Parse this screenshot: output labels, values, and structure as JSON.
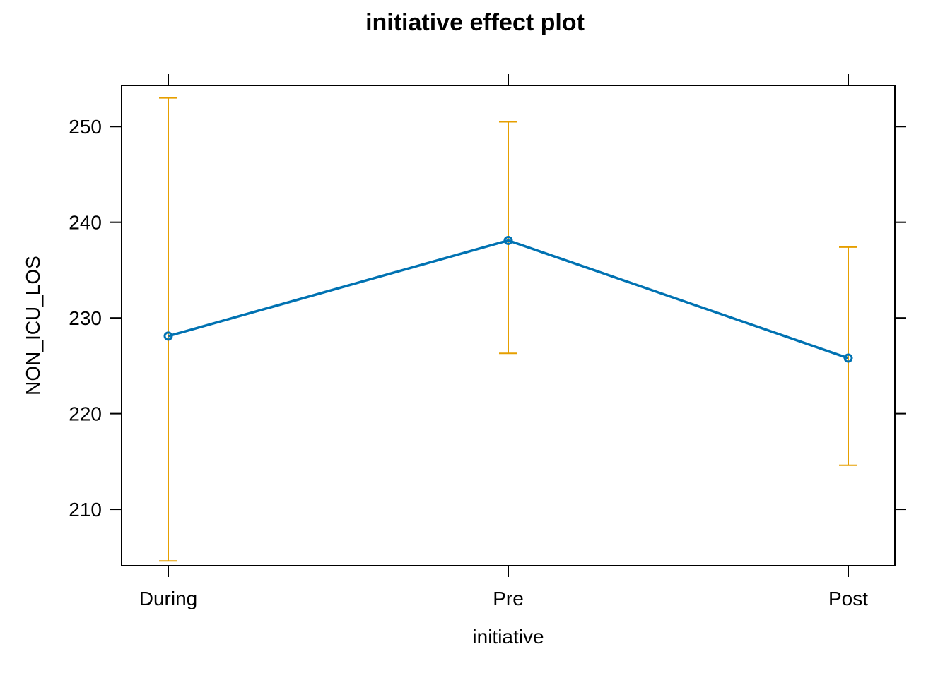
{
  "chart_data": {
    "type": "line",
    "title": "initiative effect plot",
    "xlabel": "initiative",
    "ylabel": "NON_ICU_LOS",
    "categories": [
      "During",
      "Pre",
      "Post"
    ],
    "ylim": [
      204.1,
      254.3
    ],
    "yticks": [
      210,
      220,
      230,
      240,
      250
    ],
    "series": [
      {
        "values": [
          228.1,
          238.1,
          225.8
        ],
        "lower": [
          204.6,
          226.3,
          214.6
        ],
        "upper": [
          253.0,
          250.5,
          237.4
        ]
      }
    ],
    "grid": false,
    "legend": "none",
    "colors": {
      "line": "#0072B2",
      "error_bar": "#E69F00",
      "axis": "#000000"
    }
  }
}
